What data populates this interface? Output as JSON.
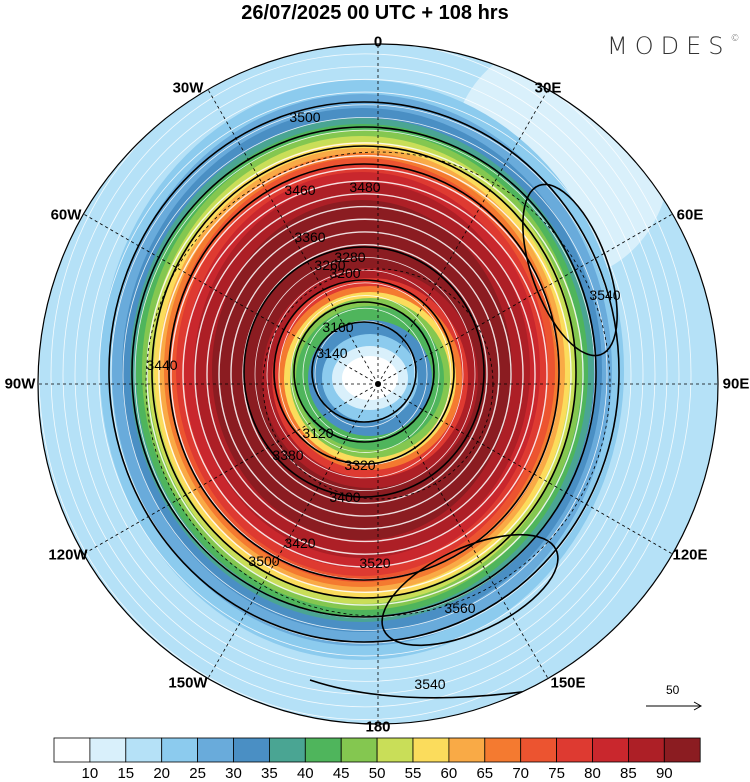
{
  "title": "26/07/2025  00 UTC  + 108 hrs",
  "logo": "MODES",
  "logo_mark": "©",
  "longitude_labels": [
    "0",
    "30E",
    "60E",
    "90E",
    "120E",
    "150E",
    "180",
    "150W",
    "120W",
    "90W",
    "60W",
    "30W"
  ],
  "contour_labels": [
    "3500",
    "3480",
    "3460",
    "3440",
    "3420",
    "3400",
    "3380",
    "3360",
    "3320",
    "3280",
    "3260",
    "3200",
    "3160",
    "3140",
    "3120",
    "3520",
    "3540",
    "3560",
    "3500",
    "3540"
  ],
  "wind_reference": {
    "label": "50",
    "icon": "arrow-right-icon"
  },
  "colorbar": {
    "ticks": [
      "10",
      "15",
      "20",
      "25",
      "30",
      "35",
      "40",
      "45",
      "50",
      "55",
      "60",
      "65",
      "70",
      "75",
      "80",
      "85",
      "90"
    ],
    "colors": [
      "#ffffff",
      "#d9f0fb",
      "#b5e1f7",
      "#8ccbee",
      "#69abdb",
      "#4a8fc4",
      "#4aa593",
      "#4fb55c",
      "#84c750",
      "#c9de58",
      "#fbdc5c",
      "#f9aa46",
      "#f47a30",
      "#ec5430",
      "#de3a31",
      "#c9272d",
      "#ad1f26",
      "#8b1c21"
    ]
  }
}
